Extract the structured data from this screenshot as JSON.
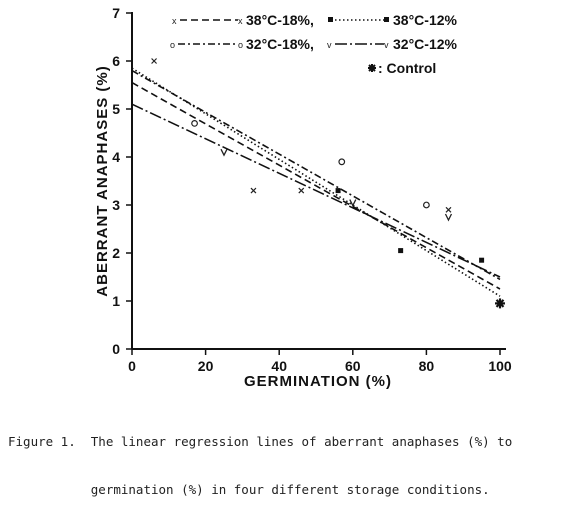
{
  "chart_data": {
    "type": "scatter",
    "xlabel": "GERMINATION (%)",
    "ylabel": "ABERRANT ANAPHASES (%)",
    "xlim": [
      0,
      100
    ],
    "ylim": [
      0,
      7
    ],
    "xticks": [
      0,
      20,
      40,
      60,
      80,
      100
    ],
    "yticks": [
      0,
      1,
      2,
      3,
      4,
      5,
      6,
      7
    ],
    "grid": false,
    "legend_placement": "top-right",
    "series": [
      {
        "name": "38°C-18%,",
        "marker": "x",
        "line_style": "dashed",
        "points": [
          [
            6,
            6.0
          ],
          [
            33,
            3.3
          ],
          [
            46,
            3.3
          ],
          [
            86,
            2.9
          ]
        ],
        "regression": [
          [
            0,
            5.55
          ],
          [
            100,
            1.25
          ]
        ]
      },
      {
        "name": "38°C-12%",
        "marker": "filled-square",
        "line_style": "dotted",
        "points": [
          [
            56,
            3.3
          ],
          [
            73,
            2.05
          ],
          [
            95,
            1.85
          ]
        ],
        "regression": [
          [
            0,
            5.85
          ],
          [
            100,
            1.1
          ]
        ]
      },
      {
        "name": "32°C-18%,",
        "marker": "open-circle",
        "line_style": "dash-dot",
        "points": [
          [
            17,
            4.7
          ],
          [
            57,
            3.9
          ],
          [
            80,
            3.0
          ]
        ],
        "regression": [
          [
            0,
            5.8
          ],
          [
            100,
            1.45
          ]
        ]
      },
      {
        "name": "32°C-12%",
        "marker": "v",
        "line_style": "long-dash-dot",
        "points": [
          [
            25,
            4.1
          ],
          [
            60,
            3.05
          ],
          [
            86,
            2.75
          ]
        ],
        "regression": [
          [
            0,
            5.1
          ],
          [
            100,
            1.5
          ]
        ]
      },
      {
        "name": "Control",
        "marker": "star",
        "points": [
          [
            100,
            0.95
          ]
        ]
      }
    ]
  },
  "legend": {
    "s1_marker": "x",
    "s1_label": "38°C-18%,",
    "s2_label": "38°C-12%",
    "s3_marker": "o",
    "s3_label": "32°C-18%,",
    "s4_marker": "v",
    "s4_label": "32°C-12%",
    "control_label": ": Control"
  },
  "caption": {
    "line1": "Figure 1.  The linear regression lines of aberrant anaphases (%) to",
    "line2": "           germination (%) in four different storage conditions."
  }
}
